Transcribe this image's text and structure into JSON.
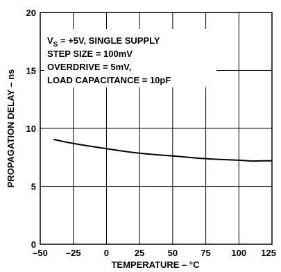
{
  "chart_data": {
    "type": "line",
    "title": "",
    "xlabel": "TEMPERATURE – °C",
    "ylabel": "PROPAGATION DELAY – ns",
    "xlim": [
      -50,
      125
    ],
    "ylim": [
      0,
      20
    ],
    "x_ticks": [
      -50,
      -25,
      0,
      25,
      50,
      75,
      100,
      125
    ],
    "y_ticks": [
      0,
      5,
      10,
      15,
      20
    ],
    "x_tick_labels": [
      "–50",
      "–25",
      "0",
      "25",
      "50",
      "75",
      "100",
      "125"
    ],
    "y_tick_labels": [
      "0",
      "5",
      "10",
      "15",
      "20"
    ],
    "grid": true,
    "annotations": {
      "vs_prefix": "V",
      "vs_sub": "S",
      "vs_rest": " = +5V, SINGLE SUPPLY",
      "line2": "STEP SIZE = 100mV",
      "line3": "OVERDRIVE = 5mV,",
      "line4": "LOAD CAPACITANCE = 10pF"
    },
    "series": [
      {
        "x": [
          -40,
          -30,
          -20,
          -10,
          0,
          10,
          20,
          30,
          40,
          50,
          60,
          70,
          80,
          90,
          100,
          110,
          120,
          125
        ],
        "y": [
          9.05,
          8.8,
          8.6,
          8.42,
          8.25,
          8.08,
          7.92,
          7.8,
          7.7,
          7.62,
          7.52,
          7.42,
          7.35,
          7.3,
          7.25,
          7.18,
          7.2,
          7.2
        ]
      }
    ],
    "line_color": "#000000"
  }
}
